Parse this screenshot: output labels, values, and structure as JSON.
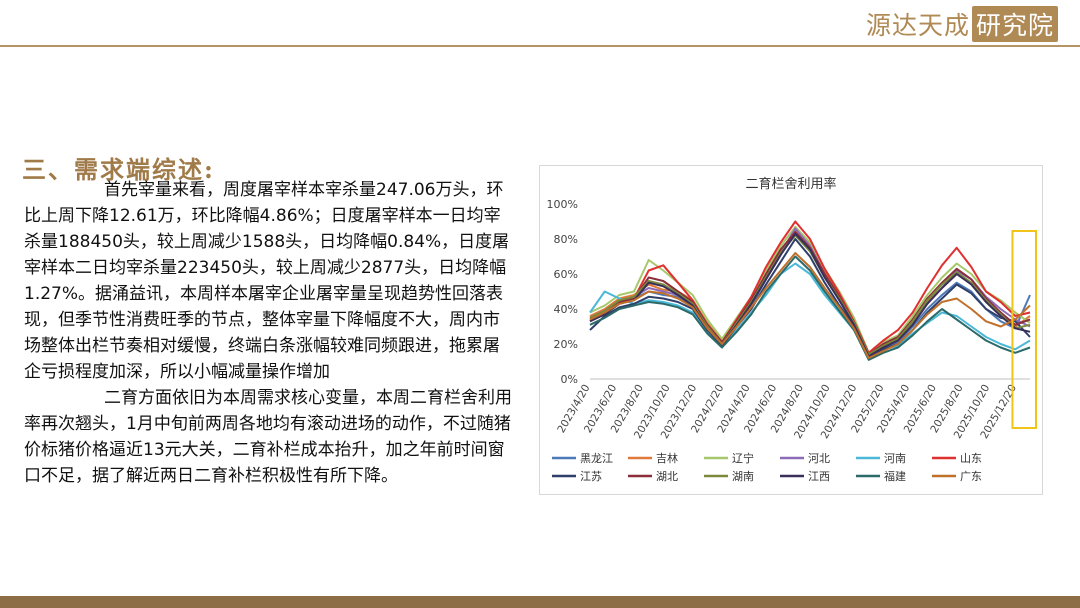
{
  "brand": {
    "name": "源达天成",
    "suffix": "研究院"
  },
  "section": {
    "title": "三、需求端综述:",
    "paragraphs": [
      "首先宰量来看，周度屠宰样本宰杀量247.06万头，环比上周下降12.61万，环比降幅4.86%；日度屠宰样本一日均宰杀量188450头，较上周减少1588头，日均降幅0.84%，日度屠宰样本二日均宰杀量223450头，较上周减少2877头，日均降幅1.27%。据涌益讯，本周样本屠宰企业屠宰量呈现趋势性回落表现，但季节性消费旺季的节点，整体宰量下降幅度不大，周内市场整体出栏节奏相对缓慢，终端白条涨幅较难同频跟进，拖累屠企亏损程度加深，所以小幅减量操作增加",
      "二育方面依旧为本周需求核心变量，本周二育栏舍利用率再次翘头，1月中旬前两周各地均有滚动进场的动作，不过随猪价标猪价格逼近13元大关，二育补栏成本抬升，加之年前时间窗口不足，据了解近两日二育补栏积极性有所下降。"
    ]
  },
  "chart_data": {
    "type": "line",
    "title": "二育栏舍利用率",
    "y_ticks": [
      "0%",
      "20%",
      "40%",
      "60%",
      "80%",
      "100%"
    ],
    "ylim": [
      0,
      100
    ],
    "x_tick_labels": [
      "2023/4/20",
      "2023/6/20",
      "2023/8/20",
      "2023/10/20",
      "2023/12/20",
      "2024/2/20",
      "2024/4/20",
      "2024/6/20",
      "2024/8/20",
      "2024/10/20",
      "2024/12/20",
      "2025/2/20",
      "2025/4/20",
      "2025/6/20",
      "2025/8/20",
      "2025/10/20",
      "2025/12/20"
    ],
    "x_range": [
      "2023/4/20",
      "2026/1/20"
    ],
    "highlight_range": [
      "2025/12/20",
      "2026/1/20"
    ],
    "highlight_color": "#f0c419",
    "legend_position": "bottom",
    "series": [
      {
        "name": "黑龙江",
        "color": "#4e79b8",
        "values": [
          34,
          39,
          44,
          46,
          50,
          48,
          47,
          42,
          30,
          21,
          31,
          42,
          57,
          71,
          84,
          75,
          59,
          45,
          31,
          13,
          18,
          21,
          30,
          40,
          48,
          55,
          50,
          40,
          33,
          29,
          48
        ]
      },
      {
        "name": "吉林",
        "color": "#e07a3a",
        "values": [
          36,
          40,
          46,
          48,
          54,
          51,
          50,
          45,
          32,
          22,
          33,
          44,
          59,
          73,
          85,
          77,
          61,
          48,
          33,
          14,
          20,
          23,
          33,
          44,
          52,
          60,
          55,
          45,
          37,
          30,
          36
        ]
      },
      {
        "name": "辽宁",
        "color": "#a6c86a",
        "values": [
          38,
          42,
          48,
          50,
          68,
          62,
          55,
          48,
          34,
          23,
          35,
          47,
          62,
          76,
          87,
          78,
          63,
          50,
          35,
          15,
          21,
          25,
          36,
          48,
          58,
          66,
          60,
          50,
          45,
          38,
          32
        ]
      },
      {
        "name": "河北",
        "color": "#8e6bb8",
        "values": [
          35,
          39,
          45,
          47,
          52,
          50,
          48,
          43,
          31,
          21,
          32,
          43,
          58,
          72,
          86,
          76,
          60,
          47,
          32,
          14,
          19,
          22,
          32,
          43,
          52,
          62,
          57,
          47,
          40,
          34,
          30
        ]
      },
      {
        "name": "河南",
        "color": "#4bb8d8",
        "values": [
          38,
          50,
          46,
          43,
          45,
          44,
          42,
          38,
          27,
          20,
          28,
          38,
          48,
          60,
          66,
          60,
          48,
          38,
          28,
          13,
          17,
          19,
          26,
          32,
          38,
          36,
          30,
          24,
          20,
          17,
          22
        ]
      },
      {
        "name": "山东",
        "color": "#e03030",
        "values": [
          33,
          38,
          43,
          46,
          62,
          65,
          55,
          45,
          31,
          21,
          34,
          47,
          64,
          78,
          90,
          80,
          63,
          49,
          33,
          15,
          22,
          28,
          38,
          52,
          65,
          75,
          64,
          50,
          44,
          36,
          38
        ]
      },
      {
        "name": "江苏",
        "color": "#2f3f6a",
        "values": [
          28,
          36,
          41,
          43,
          47,
          46,
          44,
          40,
          28,
          19,
          30,
          40,
          54,
          67,
          80,
          70,
          55,
          42,
          30,
          12,
          17,
          20,
          28,
          38,
          46,
          54,
          49,
          40,
          35,
          33,
          24
        ]
      },
      {
        "name": "湖北",
        "color": "#8a2f3a",
        "values": [
          34,
          38,
          44,
          46,
          58,
          56,
          50,
          44,
          31,
          21,
          33,
          45,
          60,
          74,
          84,
          75,
          60,
          47,
          32,
          14,
          20,
          24,
          34,
          46,
          55,
          63,
          57,
          46,
          38,
          31,
          34
        ]
      },
      {
        "name": "湖南",
        "color": "#7a8a3a",
        "values": [
          35,
          39,
          45,
          47,
          56,
          54,
          49,
          43,
          30,
          20,
          32,
          44,
          58,
          72,
          82,
          73,
          58,
          46,
          32,
          14,
          19,
          23,
          33,
          45,
          54,
          61,
          55,
          45,
          37,
          29,
          31
        ]
      },
      {
        "name": "江西",
        "color": "#3a2f5a",
        "values": [
          33,
          37,
          43,
          45,
          55,
          53,
          48,
          42,
          29,
          20,
          31,
          43,
          57,
          71,
          83,
          74,
          58,
          45,
          31,
          13,
          18,
          22,
          31,
          43,
          52,
          60,
          54,
          44,
          36,
          29,
          27
        ]
      },
      {
        "name": "福建",
        "color": "#2c6a6a",
        "values": [
          31,
          35,
          40,
          42,
          44,
          43,
          41,
          37,
          26,
          18,
          27,
          37,
          50,
          60,
          70,
          62,
          50,
          39,
          28,
          11,
          15,
          18,
          25,
          33,
          40,
          34,
          28,
          22,
          18,
          15,
          18
        ]
      },
      {
        "name": "广东",
        "color": "#c0702a",
        "values": [
          34,
          38,
          43,
          45,
          50,
          49,
          46,
          41,
          29,
          20,
          30,
          41,
          52,
          62,
          72,
          64,
          52,
          41,
          29,
          12,
          16,
          20,
          28,
          37,
          44,
          46,
          40,
          33,
          30,
          34,
          42
        ]
      }
    ]
  }
}
